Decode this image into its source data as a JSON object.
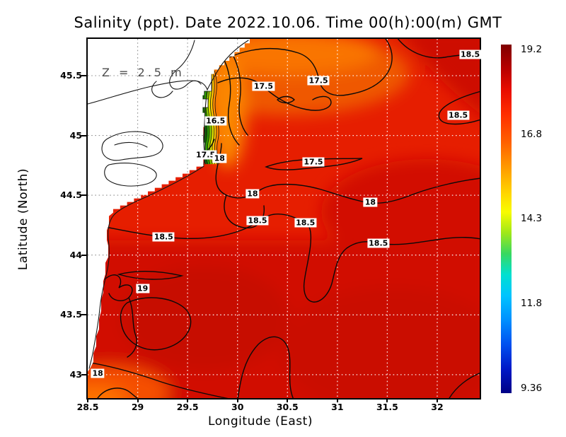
{
  "title": "Salinity (ppt). Date 2022.10.06. Time 00(h):00(m) GMT",
  "annotation": "Z = 2.5 m",
  "axes": {
    "x": {
      "label": "Longitude (East)",
      "ticks": [
        "28.5",
        "29",
        "29.5",
        "30",
        "30.5",
        "31",
        "31.5",
        "32"
      ]
    },
    "y": {
      "label": "Latitude (North)",
      "ticks": [
        "45.5",
        "45",
        "44.5",
        "44",
        "43.5",
        "43"
      ]
    }
  },
  "colorbar": {
    "labels": [
      "19.2",
      "16.8",
      "14.3",
      "11.8",
      "9.36"
    ]
  },
  "chart_data": {
    "type": "heatmap",
    "subtype": "filled-contour-map",
    "title": "Salinity (ppt). Date 2022.10.06. Time 00(h):00(m) GMT",
    "xlabel": "Longitude (East)",
    "ylabel": "Latitude (North)",
    "depth_annotation": "Z = 2.5 m",
    "x_range": [
      28.5,
      32.43
    ],
    "y_range": [
      42.8,
      45.81
    ],
    "xticks": [
      28.5,
      29,
      29.5,
      30,
      30.5,
      31,
      31.5,
      32
    ],
    "yticks": [
      45.5,
      45,
      44.5,
      44,
      43.5,
      43
    ],
    "grid": "dotted",
    "colorbar": {
      "min": 9.36,
      "max": 19.2,
      "tick_labels": [
        19.2,
        16.8,
        14.3,
        11.8,
        9.36
      ],
      "colormap": "jet"
    },
    "contour_levels_labeled": [
      16.5,
      17.5,
      18,
      18.5,
      19
    ],
    "contour_labels": [
      {
        "text": "18.5",
        "lon": 32.33,
        "lat": 45.68
      },
      {
        "text": "17.5",
        "lon": 30.81,
        "lat": 45.46
      },
      {
        "text": "17.5",
        "lon": 30.26,
        "lat": 45.41
      },
      {
        "text": "18.5",
        "lon": 32.21,
        "lat": 45.17
      },
      {
        "text": "16.5",
        "lon": 29.78,
        "lat": 45.12
      },
      {
        "text": "17.5",
        "lon": 29.68,
        "lat": 44.84
      },
      {
        "text": "18",
        "lon": 29.82,
        "lat": 44.81
      },
      {
        "text": "17.5",
        "lon": 30.76,
        "lat": 44.78
      },
      {
        "text": "18",
        "lon": 30.15,
        "lat": 44.51
      },
      {
        "text": "18",
        "lon": 31.33,
        "lat": 44.44
      },
      {
        "text": "18.5",
        "lon": 30.2,
        "lat": 44.29
      },
      {
        "text": "18.5",
        "lon": 30.68,
        "lat": 44.27
      },
      {
        "text": "18.5",
        "lon": 29.26,
        "lat": 44.15
      },
      {
        "text": "18.5",
        "lon": 31.41,
        "lat": 44.1
      },
      {
        "text": "19",
        "lon": 29.05,
        "lat": 43.72
      },
      {
        "text": "18",
        "lon": 28.6,
        "lat": 43.01
      }
    ],
    "notes": "Western Black Sea salinity field at 2.5 m depth. Land (NW coast with Danube delta and lagoons) is white; open sea mostly 18-19 ppt (red), fresher 16.5-17.5 ppt plume (orange/yellow/green bands) along the delta coast; saltiest ~19 ppt (dark red) in the south-west gyre."
  }
}
